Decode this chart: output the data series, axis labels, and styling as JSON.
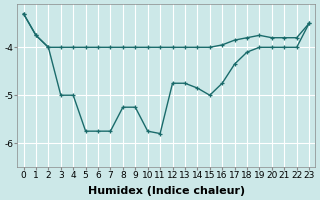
{
  "xlabel": "Humidex (Indice chaleur)",
  "background_color": "#cce8e8",
  "line_color": "#1a6b6b",
  "grid_color": "#ffffff",
  "x_values": [
    0,
    1,
    2,
    3,
    4,
    5,
    6,
    7,
    8,
    9,
    10,
    11,
    12,
    13,
    14,
    15,
    16,
    17,
    18,
    19,
    20,
    21,
    22,
    23
  ],
  "series1": [
    -3.3,
    -3.75,
    -4.0,
    -4.0,
    -4.0,
    -4.0,
    -4.0,
    -4.0,
    -4.0,
    -4.0,
    -4.0,
    -4.0,
    -4.0,
    -4.0,
    -4.0,
    -4.0,
    -3.95,
    -3.85,
    -3.8,
    -3.75,
    -3.8,
    -3.8,
    -3.8,
    -3.5
  ],
  "series2": [
    -3.3,
    -3.75,
    -4.0,
    -5.0,
    -5.0,
    -5.75,
    -5.75,
    -5.75,
    -5.25,
    -5.25,
    -5.75,
    -5.8,
    -4.75,
    -4.75,
    -4.85,
    -5.0,
    -4.75,
    -4.35,
    -4.1,
    -4.0,
    -4.0,
    -4.0,
    -4.0,
    -3.5
  ],
  "ylim": [
    -6.5,
    -3.1
  ],
  "xlim": [
    -0.5,
    23.5
  ],
  "yticks": [
    -6,
    -5,
    -4
  ],
  "xticks": [
    0,
    1,
    2,
    3,
    4,
    5,
    6,
    7,
    8,
    9,
    10,
    11,
    12,
    13,
    14,
    15,
    16,
    17,
    18,
    19,
    20,
    21,
    22,
    23
  ],
  "axis_fontsize": 7.5,
  "tick_fontsize": 6.5,
  "xlabel_fontsize": 8,
  "linewidth": 1.0,
  "markersize": 3.5
}
